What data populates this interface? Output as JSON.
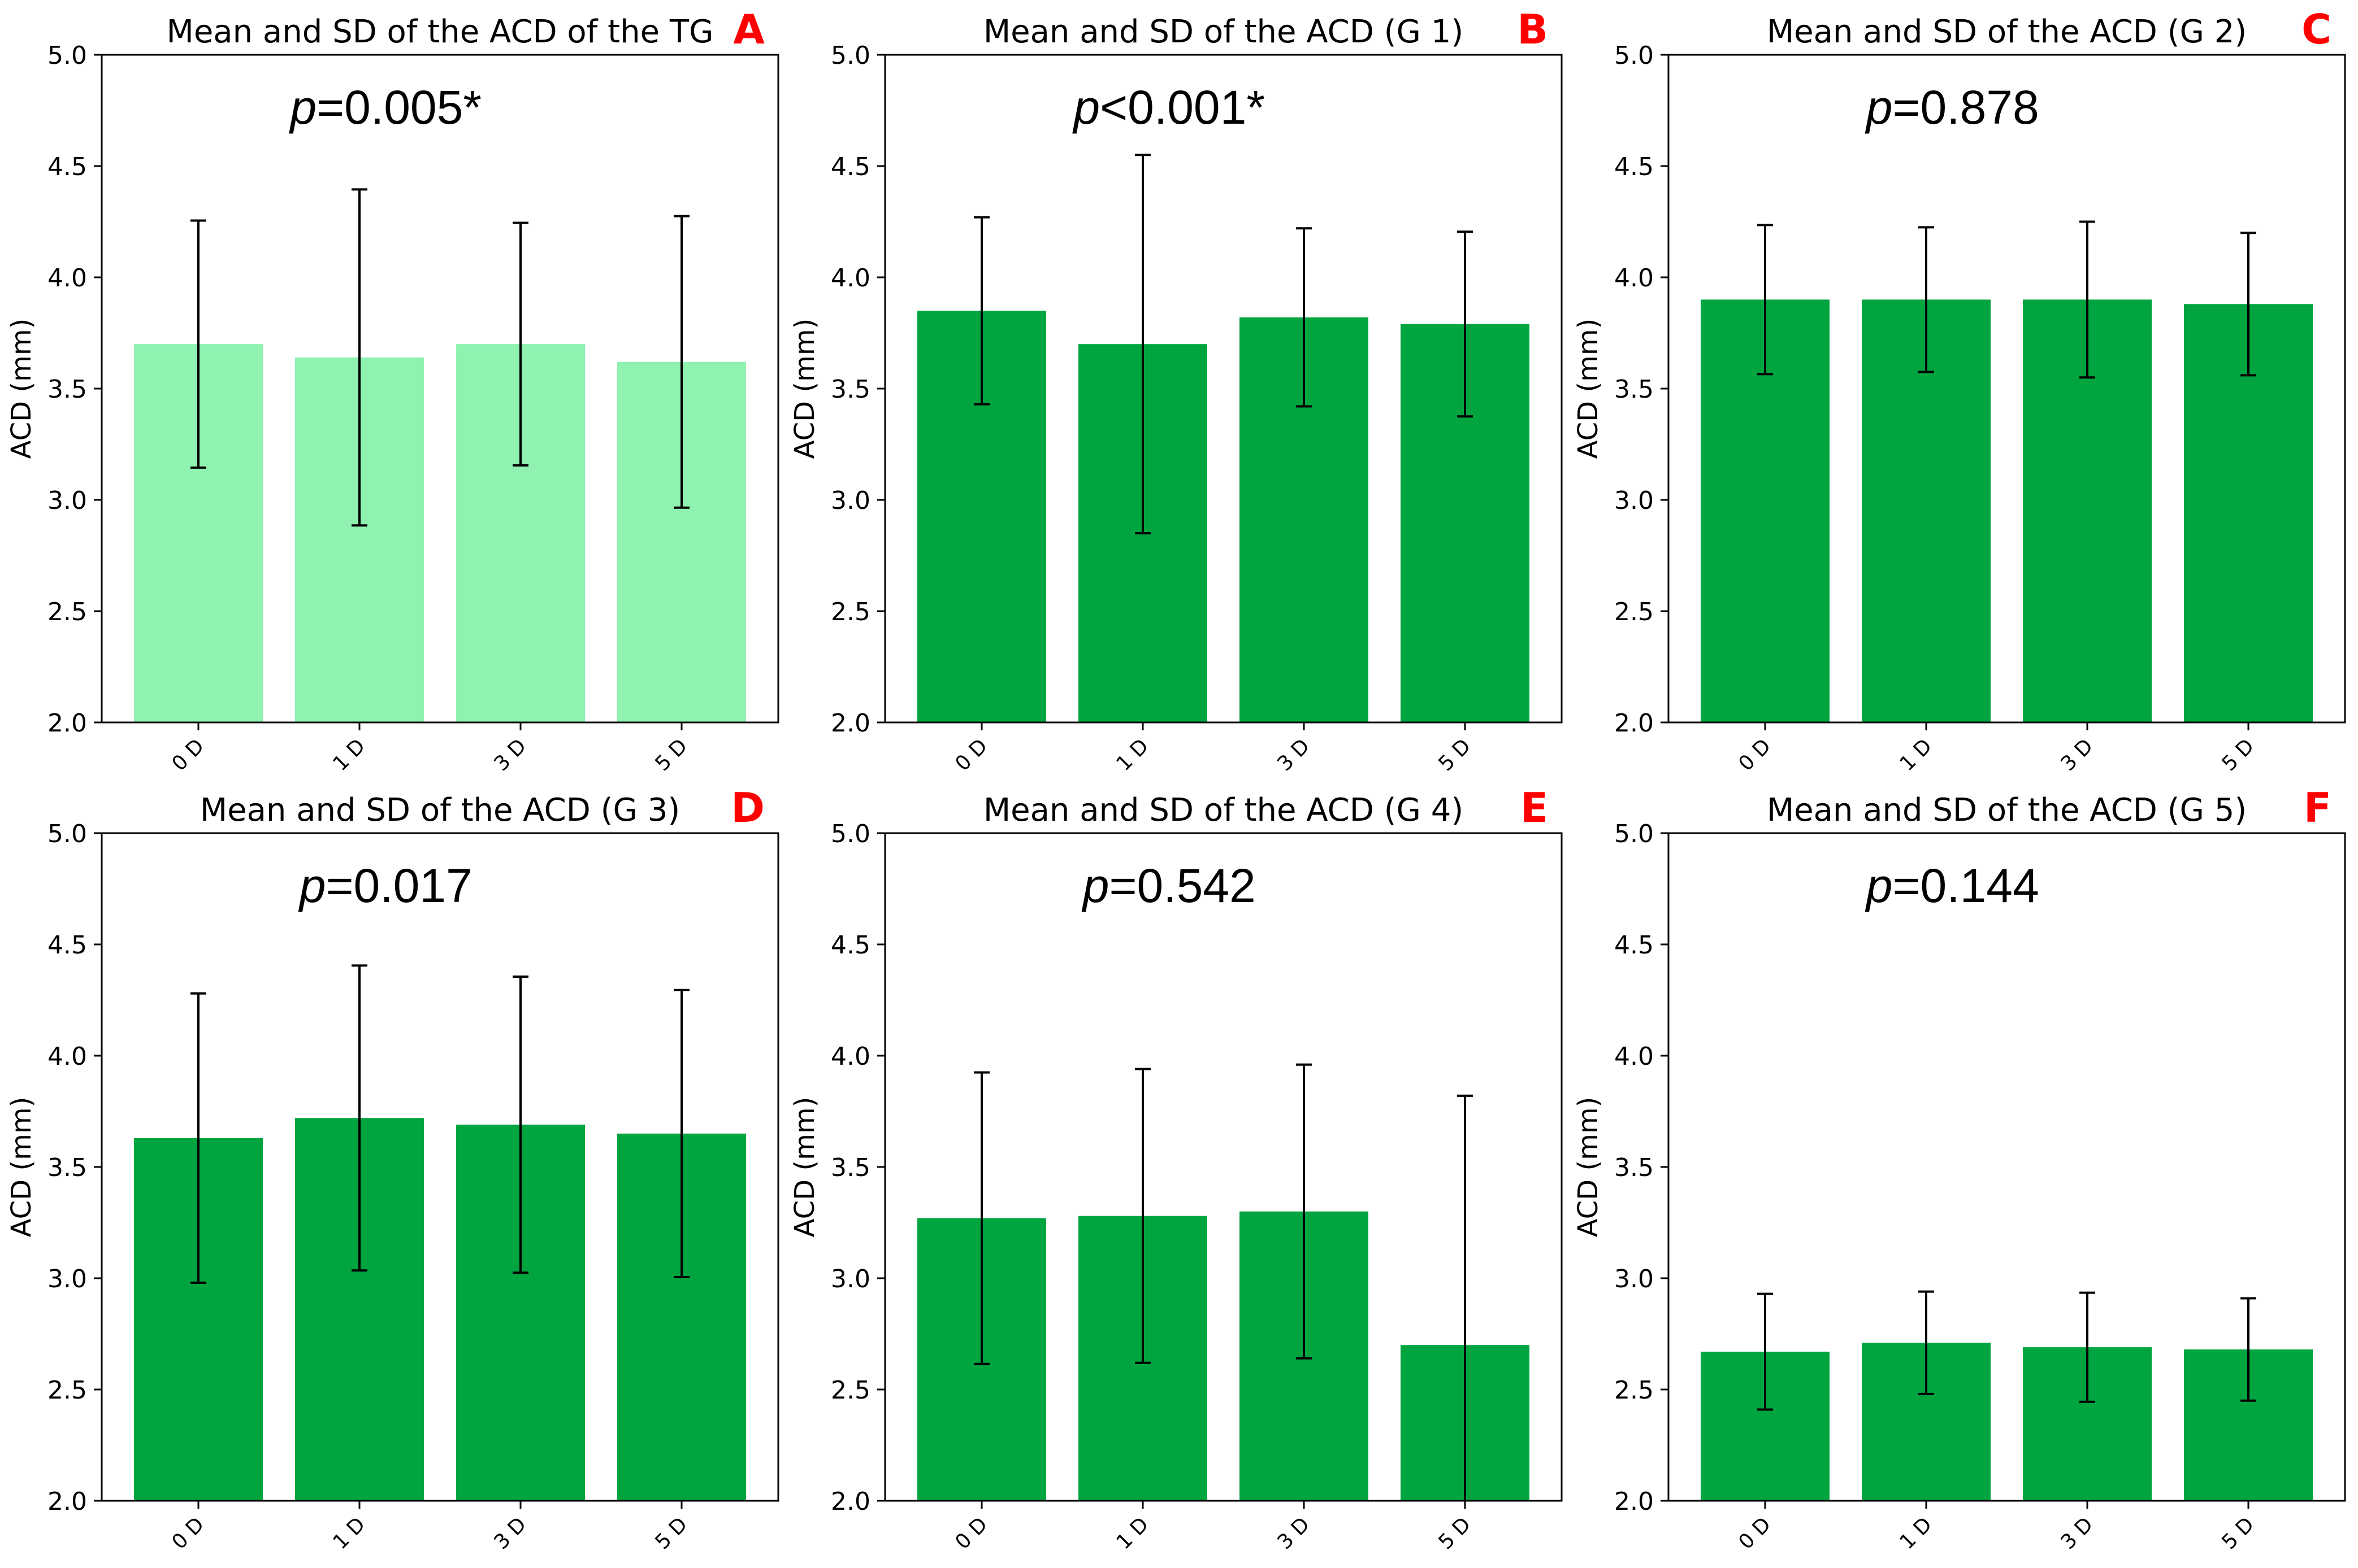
{
  "figure": {
    "bar_colors": {
      "tg": "#90f2b0",
      "group": "#00a53f"
    },
    "letter_color": "#ff0000",
    "text_color": "#000000",
    "errorbar_color": "#000000"
  },
  "chart_data": [
    {
      "type": "bar",
      "panel_letter": "A",
      "title": "Mean and SD of the ACD of the TG",
      "annotation": {
        "p_symbol": "p",
        "p_rest": "=0.005*"
      },
      "xlabel": "",
      "ylabel": "ACD (mm)",
      "ylim": [
        2.0,
        5.0
      ],
      "yticks": [
        "2.0",
        "2.5",
        "3.0",
        "3.5",
        "4.0",
        "4.5",
        "5.0"
      ],
      "categories": [
        "0 D",
        "1 D",
        "3 D",
        "5 D"
      ],
      "values": [
        3.7,
        3.64,
        3.7,
        3.62
      ],
      "sd": [
        0.555,
        0.755,
        0.545,
        0.655
      ],
      "color_key": "tg",
      "grid": false
    },
    {
      "type": "bar",
      "panel_letter": "B",
      "title": "Mean and SD of the ACD (G 1)",
      "annotation": {
        "p_symbol": "p",
        "p_rest": "<0.001*"
      },
      "xlabel": "",
      "ylabel": "ACD (mm)",
      "ylim": [
        2.0,
        5.0
      ],
      "yticks": [
        "2.0",
        "2.5",
        "3.0",
        "3.5",
        "4.0",
        "4.5",
        "5.0"
      ],
      "categories": [
        "0 D",
        "1 D",
        "3 D",
        "5 D"
      ],
      "values": [
        3.85,
        3.7,
        3.82,
        3.79
      ],
      "sd": [
        0.42,
        0.85,
        0.4,
        0.415
      ],
      "color_key": "group",
      "grid": false
    },
    {
      "type": "bar",
      "panel_letter": "C",
      "title": "Mean and SD of the ACD (G 2)",
      "annotation": {
        "p_symbol": "p",
        "p_rest": "=0.878"
      },
      "xlabel": "",
      "ylabel": "ACD (mm)",
      "ylim": [
        2.0,
        5.0
      ],
      "yticks": [
        "2.0",
        "2.5",
        "3.0",
        "3.5",
        "4.0",
        "4.5",
        "5.0"
      ],
      "categories": [
        "0 D",
        "1 D",
        "3 D",
        "5 D"
      ],
      "values": [
        3.9,
        3.9,
        3.9,
        3.88
      ],
      "sd": [
        0.335,
        0.325,
        0.35,
        0.32
      ],
      "color_key": "group",
      "grid": false
    },
    {
      "type": "bar",
      "panel_letter": "D",
      "title": "Mean and SD of the ACD (G 3)",
      "annotation": {
        "p_symbol": "p",
        "p_rest": "=0.017"
      },
      "xlabel": "",
      "ylabel": "ACD (mm)",
      "ylim": [
        2.0,
        5.0
      ],
      "yticks": [
        "2.0",
        "2.5",
        "3.0",
        "3.5",
        "4.0",
        "4.5",
        "5.0"
      ],
      "categories": [
        "0 D",
        "1 D",
        "3 D",
        "5 D"
      ],
      "values": [
        3.63,
        3.72,
        3.69,
        3.65
      ],
      "sd": [
        0.65,
        0.685,
        0.665,
        0.645
      ],
      "color_key": "group",
      "grid": false
    },
    {
      "type": "bar",
      "panel_letter": "E",
      "title": "Mean and SD of the ACD (G 4)",
      "annotation": {
        "p_symbol": "p",
        "p_rest": "=0.542"
      },
      "xlabel": "",
      "ylabel": "ACD (mm)",
      "ylim": [
        2.0,
        5.0
      ],
      "yticks": [
        "2.0",
        "2.5",
        "3.0",
        "3.5",
        "4.0",
        "4.5",
        "5.0"
      ],
      "categories": [
        "0 D",
        "1 D",
        "3 D",
        "5 D"
      ],
      "values": [
        3.27,
        3.28,
        3.3,
        2.7
      ],
      "sd": [
        0.655,
        0.66,
        0.66,
        1.12
      ],
      "color_key": "group",
      "grid": false
    },
    {
      "type": "bar",
      "panel_letter": "F",
      "title": "Mean and SD of the ACD (G 5)",
      "annotation": {
        "p_symbol": "p",
        "p_rest": "=0.144"
      },
      "xlabel": "",
      "ylabel": "ACD (mm)",
      "ylim": [
        2.0,
        5.0
      ],
      "yticks": [
        "2.0",
        "2.5",
        "3.0",
        "3.5",
        "4.0",
        "4.5",
        "5.0"
      ],
      "categories": [
        "0 D",
        "1 D",
        "3 D",
        "5 D"
      ],
      "values": [
        2.67,
        2.71,
        2.69,
        2.68
      ],
      "sd": [
        0.26,
        0.23,
        0.245,
        0.23
      ],
      "color_key": "group",
      "grid": false
    }
  ]
}
